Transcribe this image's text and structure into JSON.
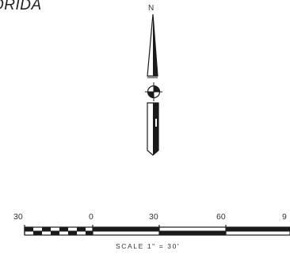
{
  "map": {
    "state_label": "ORIDA",
    "north_arrow": {
      "letter": "N",
      "icon": "north-arrow-icon"
    },
    "scale_bar": {
      "tick_labels": [
        "30",
        "0",
        "30",
        "60",
        "9"
      ],
      "caption": "SCALE 1\" = 30'"
    },
    "colors": {
      "ink": "#1a1a1a",
      "background": "#ffffff"
    }
  }
}
